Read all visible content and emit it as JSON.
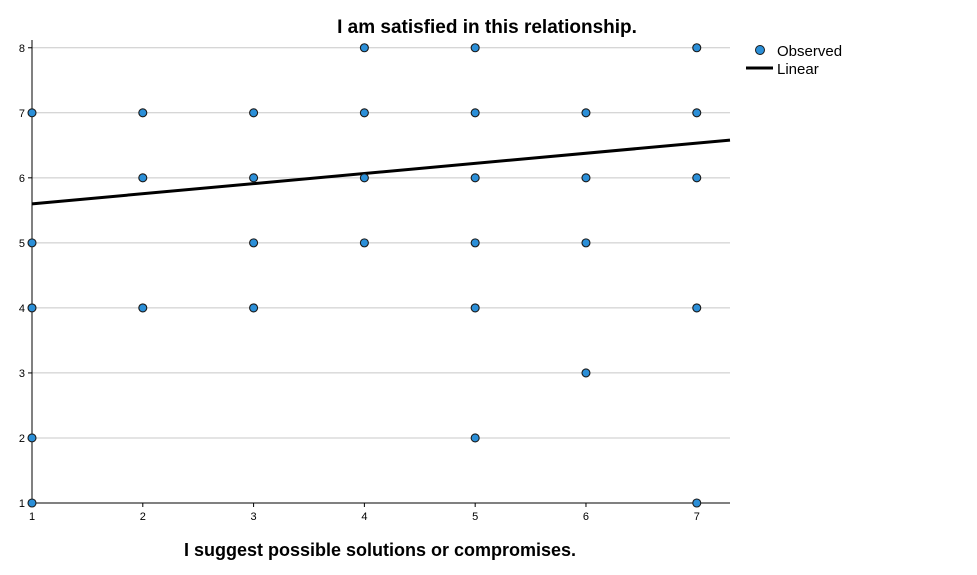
{
  "chart_data": {
    "type": "scatter",
    "title": "I am satisfied in this relationship.",
    "xlabel": "I suggest possible solutions or compromises.",
    "ylabel": "",
    "xlim": [
      1,
      7.3
    ],
    "ylim": [
      1,
      8.35
    ],
    "x_ticks": [
      "1",
      "2",
      "3",
      "4",
      "5",
      "6",
      "7"
    ],
    "y_ticks": [
      "1",
      "2",
      "3",
      "4",
      "5",
      "6",
      "7",
      "8"
    ],
    "grid": "horizontal",
    "legend": {
      "position": "top-right",
      "entries": [
        "Observed",
        "Linear"
      ]
    },
    "point_color": "#2b8fd8",
    "series": [
      {
        "name": "Observed",
        "kind": "points",
        "points": [
          [
            1,
            1
          ],
          [
            1,
            2
          ],
          [
            1,
            4
          ],
          [
            1,
            5
          ],
          [
            1,
            7
          ],
          [
            2,
            4
          ],
          [
            2,
            6
          ],
          [
            2,
            7
          ],
          [
            3,
            4
          ],
          [
            3,
            5
          ],
          [
            3,
            6
          ],
          [
            3,
            7
          ],
          [
            4,
            5
          ],
          [
            4,
            6
          ],
          [
            4,
            7
          ],
          [
            4,
            8
          ],
          [
            5,
            2
          ],
          [
            5,
            4
          ],
          [
            5,
            5
          ],
          [
            5,
            6
          ],
          [
            5,
            7
          ],
          [
            5,
            8
          ],
          [
            6,
            3
          ],
          [
            6,
            5
          ],
          [
            6,
            6
          ],
          [
            6,
            7
          ],
          [
            7,
            1
          ],
          [
            7,
            4
          ],
          [
            7,
            6
          ],
          [
            7,
            7
          ],
          [
            7,
            8
          ]
        ]
      },
      {
        "name": "Linear",
        "kind": "line",
        "x": [
          1,
          7.3
        ],
        "y": [
          5.6,
          6.58
        ]
      }
    ]
  }
}
